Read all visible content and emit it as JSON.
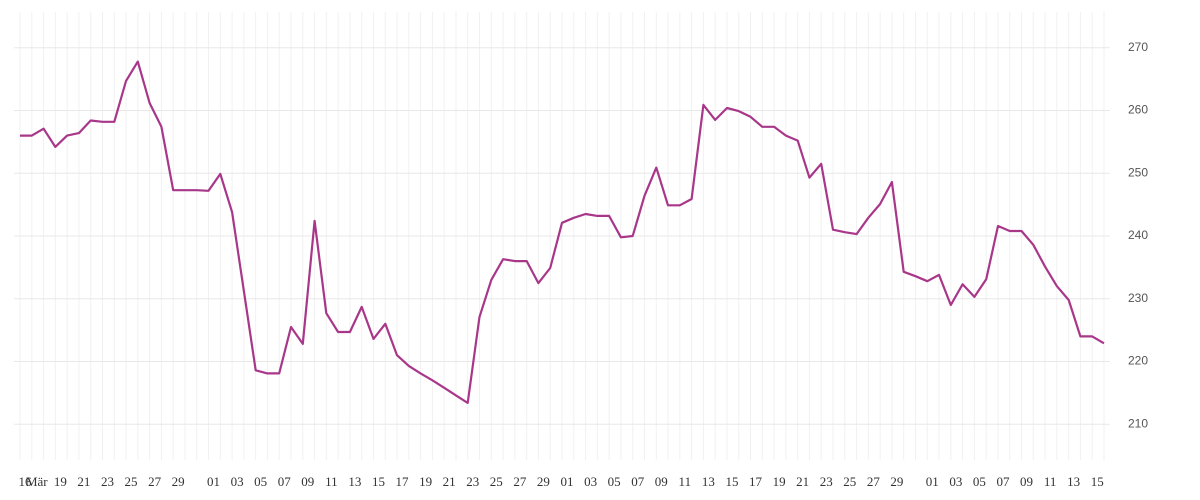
{
  "chart_data": {
    "type": "line",
    "categories": [
      "16",
      "Mär",
      null,
      "19",
      null,
      "21",
      null,
      "23",
      null,
      "25",
      null,
      "27",
      null,
      "29",
      null,
      null,
      "01",
      null,
      "03",
      null,
      "05",
      null,
      "07",
      null,
      "09",
      null,
      "11",
      null,
      "13",
      null,
      "15",
      null,
      "17",
      null,
      "19",
      null,
      "21",
      null,
      "23",
      null,
      "25",
      null,
      "27",
      null,
      "29",
      null,
      "01",
      null,
      "03",
      null,
      "05",
      null,
      "07",
      null,
      "09",
      null,
      "11",
      null,
      "13",
      null,
      "15",
      null,
      "17",
      null,
      "19",
      null,
      "21",
      null,
      "23",
      null,
      "25",
      null,
      "27",
      null,
      "29",
      null,
      null,
      "01",
      null,
      "03",
      null,
      "05",
      null,
      "07",
      null,
      "09",
      null,
      "11",
      null,
      "13",
      null,
      "15",
      null
    ],
    "series": [
      {
        "color": "#a8378a",
        "values": [
          256.0,
          256.0,
          257.1,
          254.2,
          256.0,
          256.4,
          258.4,
          258.2,
          258.2,
          264.7,
          267.8,
          261.2,
          257.4,
          247.3,
          247.3,
          247.3,
          247.2,
          249.9,
          243.8,
          231.2,
          218.6,
          218.1,
          218.1,
          225.5,
          222.8,
          242.4,
          227.7,
          224.7,
          224.7,
          228.7,
          223.6,
          226.0,
          221.0,
          219.3,
          218.1,
          217.0,
          215.8,
          214.6,
          213.4,
          227.1,
          233.0,
          236.3,
          236.0,
          236.0,
          232.5,
          234.9,
          242.1,
          242.9,
          243.5,
          243.2,
          243.2,
          239.8,
          240.0,
          246.4,
          250.9,
          244.9,
          244.9,
          245.9,
          260.9,
          258.5,
          260.4,
          259.9,
          259.0,
          257.4,
          257.4,
          256.0,
          255.2,
          249.3,
          251.5,
          241.0,
          240.6,
          240.3,
          242.9,
          245.1,
          248.6,
          234.3,
          233.6,
          232.8,
          233.8,
          229.0,
          232.3,
          230.3,
          233.1,
          241.6,
          240.8,
          240.8,
          238.6,
          235.1,
          232.0,
          229.8,
          224.0,
          224.0,
          222.9
        ]
      }
    ],
    "ylim": [
      204.3,
      275.7
    ],
    "yticks": [
      210,
      220,
      230,
      240,
      250,
      260,
      270
    ],
    "grid": true
  }
}
